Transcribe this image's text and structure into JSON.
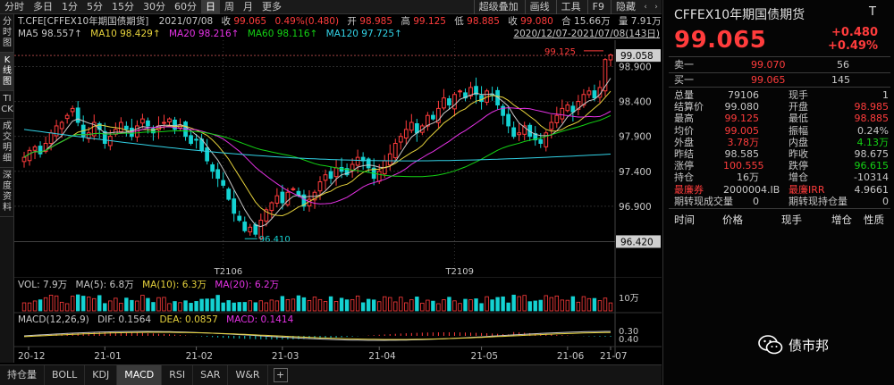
{
  "toolbar": {
    "items": [
      "分时",
      "多日",
      "1分",
      "5分",
      "15分",
      "30分",
      "60分",
      "日",
      "周",
      "月",
      "更多"
    ],
    "active": 7,
    "right_items": [
      "超级叠加",
      "画线",
      "工具",
      "F9",
      "隐藏"
    ]
  },
  "vtabs": [
    {
      "label": "分时图",
      "active": false
    },
    {
      "label": "K线图",
      "active": true
    },
    {
      "label": "TICK",
      "active": false
    },
    {
      "label": "成交明细",
      "active": false
    },
    {
      "label": "深度资料",
      "active": false
    }
  ],
  "info": {
    "line1": {
      "symbol": "T.CFE[CFFEX10年期国债期货]",
      "date": "2021/07/08",
      "close_label": "收",
      "close": "99.065",
      "pct": "0.49%(0.480)",
      "open_label": "开",
      "open": "98.985",
      "high_label": "高",
      "high": "99.125",
      "low_label": "低",
      "low": "98.885",
      "close2_label": "收",
      "close2": "99.080",
      "vol_label": "合",
      "vol": "15.66万",
      "amt_label": "量",
      "amt": "7.91万"
    },
    "line2": {
      "ma5": "MA5 98.557↑",
      "ma10": "MA10 98.429↑",
      "ma20": "MA20 98.216↑",
      "ma60": "MA60 98.116↑",
      "ma120": "MA120 97.725↑",
      "range": "2020/12/07-2021/07/08(143日)"
    }
  },
  "colors": {
    "up": "#ff3c3c",
    "down": "#14d2d2",
    "ma5": "#c8c8c8",
    "ma10": "#e6d23c",
    "ma20": "#e632e6",
    "ma60": "#14d214",
    "ma120": "#32d2e6"
  },
  "axis": {
    "ticks": [
      "98.900",
      "98.400",
      "97.900",
      "97.400",
      "96.900"
    ],
    "price_tag_top": "99.058",
    "price_tag_bottom": "96.420",
    "high_mark": "99.125",
    "low_mark": "96.410",
    "contracts": [
      "T2106",
      "T2109"
    ],
    "vol_tick": "10万",
    "macd_ticks": [
      "0.30",
      "0.40"
    ],
    "dates": [
      "20-12",
      "21-01",
      "21-02",
      "21-03",
      "21-04",
      "21-05",
      "21-06",
      "21-07"
    ]
  },
  "vol_line": {
    "vol": "VOL: 7.9万",
    "ma5": "MA(5): 6.8万",
    "ma10": "MA(10): 6.3万",
    "ma20": "MA(20): 6.2万"
  },
  "macd_line": {
    "name": "MACD(12,26,9)",
    "dif": "DIF: 0.1564",
    "dea": "DEA: 0.0857",
    "macd": "MACD: 0.1414"
  },
  "bottom_tabs": [
    "持仓量",
    "BOLL",
    "KDJ",
    "MACD",
    "RSI",
    "SAR",
    "W&R",
    "+"
  ],
  "bottom_active": 3,
  "panel": {
    "title": "CFFEX10年期国债期货",
    "t": "T",
    "price": "99.065",
    "chg": "+0.480",
    "pct": "+0.49%",
    "ask_label": "卖一",
    "ask": "99.070",
    "ask_vol": "56",
    "bid_label": "买一",
    "bid": "99.065",
    "bid_vol": "145",
    "stats": [
      [
        "总量",
        "79106",
        "现手",
        "1"
      ],
      [
        "结算价",
        "99.080",
        "开盘",
        "98.985"
      ],
      [
        "最高",
        "99.125",
        "最低",
        "98.885"
      ],
      [
        "均价",
        "99.005",
        "振幅",
        "0.24%"
      ],
      [
        "外盘",
        "3.78万",
        "内盘",
        "4.13万"
      ],
      [
        "昨结",
        "98.585",
        "昨收",
        "98.675"
      ],
      [
        "涨停",
        "100.555",
        "跌停",
        "96.615"
      ],
      [
        "持仓",
        "16万",
        "增仓",
        "-10314"
      ],
      [
        "最廉券",
        "2000004.IB",
        "最廉IRR",
        "4.9661"
      ],
      [
        "期转现成交量",
        "0",
        "期转现持仓量",
        "0"
      ]
    ],
    "footer": [
      "时间",
      "价格",
      "现手",
      "增仓",
      "性质"
    ]
  },
  "watermark": "债市邦",
  "chart_data": {
    "type": "candlestick",
    "period": "2020/12/07-2021/07/08",
    "ylim": [
      96.4,
      99.2
    ],
    "ticks": [
      98.9,
      98.4,
      97.9,
      97.4,
      96.9
    ],
    "high": 99.125,
    "low": 96.41,
    "close_last": 99.065,
    "ma": {
      "MA5": 98.557,
      "MA10": 98.429,
      "MA20": 98.216,
      "MA60": 98.116,
      "MA120": 97.725
    },
    "closes": [
      97.6,
      97.7,
      97.75,
      97.65,
      97.8,
      97.95,
      98.05,
      98.1,
      98.2,
      98.3,
      98.1,
      97.9,
      97.95,
      98.1,
      98.0,
      97.8,
      97.9,
      98.0,
      98.1,
      98.0,
      97.9,
      98.05,
      98.15,
      98.05,
      97.95,
      98.05,
      98.1,
      98.15,
      98.0,
      98.05,
      97.9,
      97.8,
      97.85,
      97.7,
      97.55,
      97.4,
      97.3,
      97.2,
      97.0,
      96.8,
      96.7,
      96.55,
      96.6,
      96.5,
      96.7,
      96.85,
      96.95,
      97.05,
      96.95,
      97.1,
      97.15,
      97.05,
      96.9,
      97.0,
      97.1,
      97.25,
      97.35,
      97.3,
      97.45,
      97.4,
      97.35,
      97.5,
      97.6,
      97.55,
      97.45,
      97.3,
      97.4,
      97.55,
      97.65,
      97.8,
      97.9,
      98.0,
      98.1,
      97.95,
      98.05,
      98.2,
      98.15,
      98.3,
      98.45,
      98.35,
      98.5,
      98.55,
      98.45,
      98.6,
      98.5,
      98.4,
      98.55,
      98.5,
      98.35,
      98.2,
      98.05,
      97.9,
      97.95,
      98.05,
      97.9,
      97.85,
      97.8,
      97.95,
      98.1,
      98.2,
      98.3,
      98.35,
      98.25,
      98.4,
      98.5,
      98.55,
      98.45,
      98.6,
      99.0,
      99.065
    ],
    "volume_unit": "万",
    "macd": {
      "DIF": 0.1564,
      "DEA": 0.0857,
      "MACD": 0.1414
    }
  }
}
